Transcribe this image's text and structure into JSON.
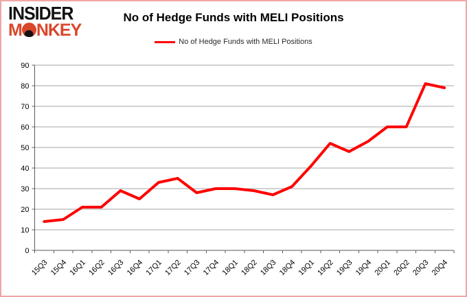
{
  "branding": {
    "logo_line1": "INSIDER",
    "logo_m": "M",
    "logo_o": "O",
    "logo_rest": "NKEY"
  },
  "header": {
    "title": "No of Hedge Funds with MELI Positions"
  },
  "legend": {
    "label": "No of Hedge Funds with MELI Positions"
  },
  "colors": {
    "line": "#FF0000",
    "logo_black": "#121212",
    "logo_red": "#D9472B",
    "grid": "#A6A6A6",
    "axis": "#595959",
    "frame_border": "#F0A6A6",
    "text": "#000000"
  },
  "chart_data": {
    "type": "line",
    "title": "No of Hedge Funds with MELI Positions",
    "categories": [
      "15Q3",
      "15Q4",
      "16Q1",
      "16Q2",
      "16Q3",
      "16Q4",
      "17Q1",
      "17Q2",
      "17Q3",
      "17Q4",
      "18Q1",
      "18Q2",
      "18Q3",
      "18Q4",
      "19Q1",
      "19Q2",
      "19Q3",
      "19Q4",
      "20Q1",
      "20Q2",
      "20Q3",
      "20Q4"
    ],
    "values": [
      14,
      15,
      21,
      21,
      29,
      25,
      33,
      35,
      28,
      30,
      30,
      29,
      27,
      31,
      41,
      52,
      48,
      53,
      60,
      60,
      81,
      79
    ],
    "series": [
      {
        "name": "No of Hedge Funds with MELI Positions",
        "values": [
          14,
          15,
          21,
          21,
          29,
          25,
          33,
          35,
          28,
          30,
          30,
          29,
          27,
          31,
          41,
          52,
          48,
          53,
          60,
          60,
          81,
          79
        ]
      }
    ],
    "xlabel": "",
    "ylabel": "",
    "ylim": [
      0,
      90
    ],
    "yticks": [
      0,
      10,
      20,
      30,
      40,
      50,
      60,
      70,
      80,
      90
    ],
    "grid": true,
    "legend_position": "top",
    "x_label_rotation_deg": -45
  }
}
